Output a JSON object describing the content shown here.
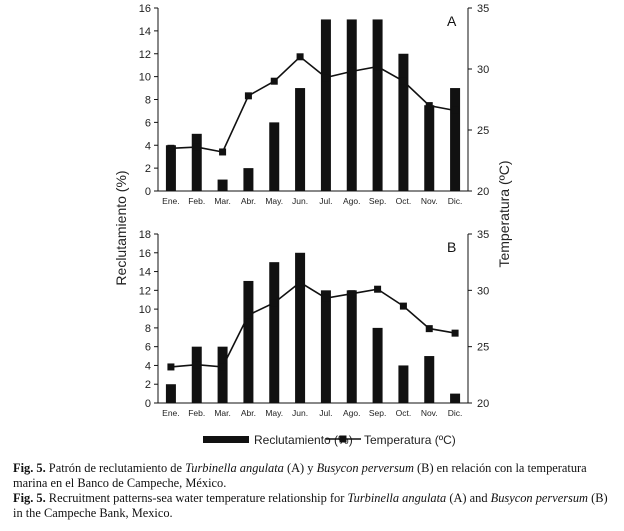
{
  "chart_data": [
    {
      "panel": "A",
      "type": "bar+line",
      "categories": [
        "Ene.",
        "Feb.",
        "Mar.",
        "Abr.",
        "May.",
        "Jun.",
        "Jul.",
        "Ago.",
        "Sep.",
        "Oct.",
        "Nov.",
        "Dic."
      ],
      "series": [
        {
          "name": "Reclutamiento (%)",
          "type": "bar",
          "axis": "left",
          "values": [
            4,
            5,
            1,
            2,
            6,
            9,
            15,
            15,
            15,
            12,
            7.5,
            9
          ]
        },
        {
          "name": "Temperatura (ºC)",
          "type": "line",
          "axis": "right",
          "values": [
            23.5,
            23.6,
            23.2,
            27.8,
            29.0,
            31.0,
            29.3,
            29.8,
            30.2,
            29.0,
            27.0,
            26.6
          ]
        }
      ],
      "ylabel": "Reclutamiento (%)",
      "y2label": "Temperatura (ºC)",
      "ylim": [
        0,
        16
      ],
      "yticks": [
        0,
        2,
        4,
        6,
        8,
        10,
        12,
        14,
        16
      ],
      "y2lim": [
        20,
        35
      ],
      "y2ticks": [
        20,
        25,
        30,
        35
      ]
    },
    {
      "panel": "B",
      "type": "bar+line",
      "categories": [
        "Ene.",
        "Feb.",
        "Mar.",
        "Abr.",
        "May.",
        "Jun.",
        "Jul.",
        "Ago.",
        "Sep.",
        "Oct.",
        "Nov.",
        "Dic."
      ],
      "series": [
        {
          "name": "Reclutamiento (%)",
          "type": "bar",
          "axis": "left",
          "values": [
            2,
            6,
            6,
            13,
            15,
            16,
            12,
            12,
            8,
            4,
            5,
            1
          ]
        },
        {
          "name": "Temperatura (ºC)",
          "type": "line",
          "axis": "right",
          "values": [
            23.2,
            23.4,
            23.2,
            27.8,
            28.9,
            30.7,
            29.3,
            29.7,
            30.1,
            28.6,
            26.6,
            26.2
          ]
        }
      ],
      "ylabel": "Reclutamiento (%)",
      "y2label": "Temperatura (ºC)",
      "ylim": [
        0,
        18
      ],
      "yticks": [
        0,
        2,
        4,
        6,
        8,
        10,
        12,
        14,
        16,
        18
      ],
      "y2lim": [
        20,
        35
      ],
      "y2ticks": [
        20,
        25,
        30,
        35
      ]
    }
  ],
  "axis_label_left": "Reclutamiento (%)",
  "axis_label_right": "Temperatura (ºC)",
  "panel_a_letter": "A",
  "panel_b_letter": "B",
  "legend": {
    "bar": "Reclutamiento (%)",
    "line": "Temperatura (ºC)"
  },
  "caption": {
    "es": {
      "fig": "Fig. 5.",
      "t1": " Patrón de reclutamiento de ",
      "sp1": "Turbinella angulata",
      "t2": " (A) y ",
      "sp2": "Busycon perversum",
      "t3": " (B) en relación con la temperatura marina en el Banco de Campeche, México."
    },
    "en": {
      "fig": "Fig. 5.",
      "t1": " Recruitment patterns-sea water temperature relationship for ",
      "sp1": "Turbinella angulata",
      "t2": " (A) and ",
      "sp2": "Busycon perversum",
      "t3": " (B) in the Campeche Bank, Mexico."
    }
  }
}
